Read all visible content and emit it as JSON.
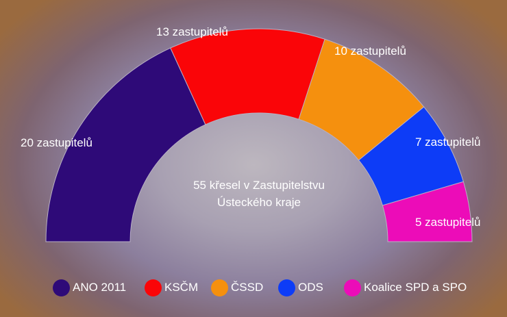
{
  "chart_data": {
    "type": "parliament",
    "title_lines": [
      "55 křesel v Zastupitelstvu",
      "Ústeckého kraje"
    ],
    "total": 55,
    "series": [
      {
        "name": "ANO 2011",
        "value": 20,
        "label": "20 zastupitelů",
        "color": "#2e0a78"
      },
      {
        "name": "KSČM",
        "value": 13,
        "label": "13 zastupitelů",
        "color": "#fa0508"
      },
      {
        "name": "ČSSD",
        "value": 10,
        "label": "10 zastupitelů",
        "color": "#f5900e"
      },
      {
        "name": "ODS",
        "value": 7,
        "label": "7 zastupitelů",
        "color": "#0d3cf7"
      },
      {
        "name": "Koalice SPD a SPO",
        "value": 5,
        "label": "5 zastupitelů",
        "color": "#ec0cb8"
      }
    ]
  }
}
